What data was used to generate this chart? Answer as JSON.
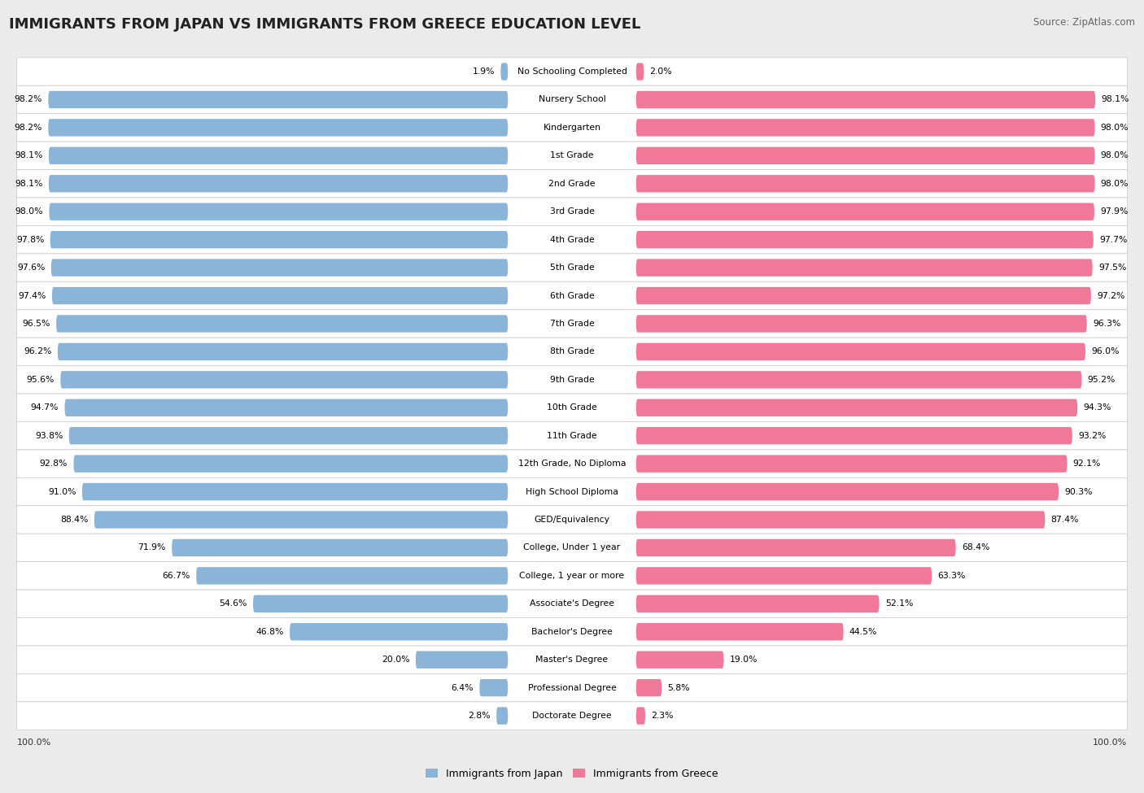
{
  "title": "IMMIGRANTS FROM JAPAN VS IMMIGRANTS FROM GREECE EDUCATION LEVEL",
  "source": "Source: ZipAtlas.com",
  "categories": [
    "No Schooling Completed",
    "Nursery School",
    "Kindergarten",
    "1st Grade",
    "2nd Grade",
    "3rd Grade",
    "4th Grade",
    "5th Grade",
    "6th Grade",
    "7th Grade",
    "8th Grade",
    "9th Grade",
    "10th Grade",
    "11th Grade",
    "12th Grade, No Diploma",
    "High School Diploma",
    "GED/Equivalency",
    "College, Under 1 year",
    "College, 1 year or more",
    "Associate's Degree",
    "Bachelor's Degree",
    "Master's Degree",
    "Professional Degree",
    "Doctorate Degree"
  ],
  "japan_values": [
    1.9,
    98.2,
    98.2,
    98.1,
    98.1,
    98.0,
    97.8,
    97.6,
    97.4,
    96.5,
    96.2,
    95.6,
    94.7,
    93.8,
    92.8,
    91.0,
    88.4,
    71.9,
    66.7,
    54.6,
    46.8,
    20.0,
    6.4,
    2.8
  ],
  "greece_values": [
    2.0,
    98.1,
    98.0,
    98.0,
    98.0,
    97.9,
    97.7,
    97.5,
    97.2,
    96.3,
    96.0,
    95.2,
    94.3,
    93.2,
    92.1,
    90.3,
    87.4,
    68.4,
    63.3,
    52.1,
    44.5,
    19.0,
    5.8,
    2.3
  ],
  "japan_color": "#8ab4d8",
  "greece_color": "#f07898",
  "bg_color": "#ebebeb",
  "row_bg_color": "#ffffff",
  "row_alt_bg_color": "#f5f5f5",
  "legend_japan": "Immigrants from Japan",
  "legend_greece": "Immigrants from Greece",
  "label_font_size": 7.8,
  "value_font_size": 7.8,
  "title_font_size": 13
}
